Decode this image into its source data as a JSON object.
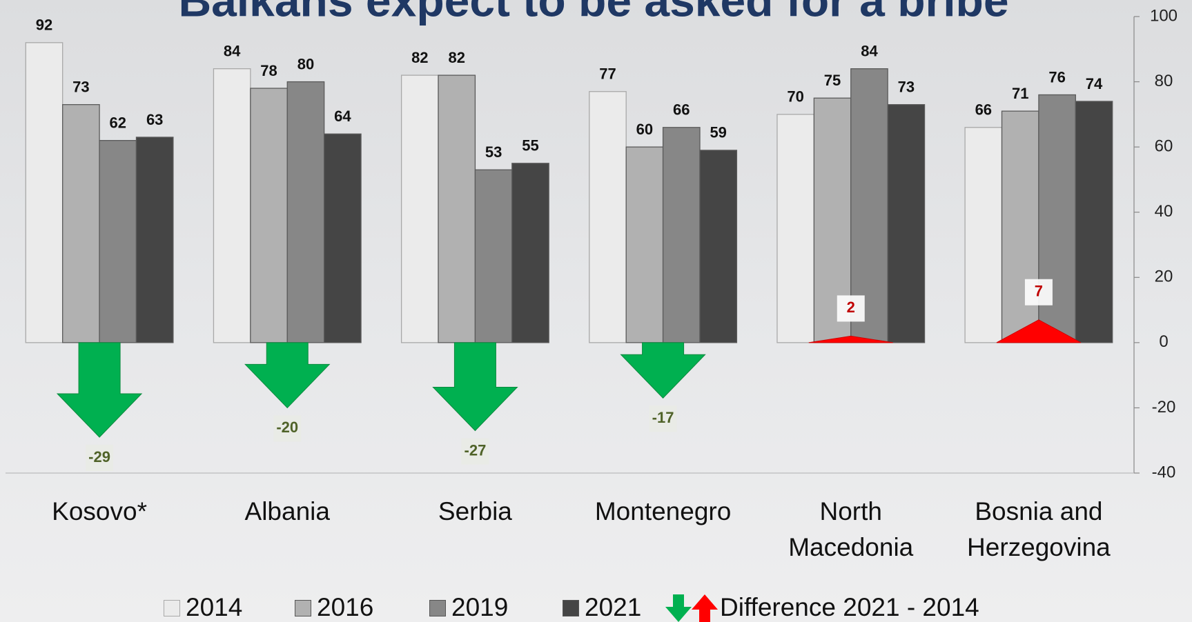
{
  "chart_data": {
    "type": "bar",
    "title": "Balkans expect to be asked for a bribe",
    "categories": [
      "Kosovo*",
      "Albania",
      "Serbia",
      "Montenegro",
      "North Macedonia",
      "Bosnia and Herzegovina"
    ],
    "series": [
      {
        "name": "2014",
        "color": "#ebebeb",
        "values": [
          92,
          84,
          82,
          77,
          70,
          66
        ]
      },
      {
        "name": "2016",
        "color": "#b1b1b1",
        "values": [
          73,
          78,
          82,
          60,
          75,
          71
        ]
      },
      {
        "name": "2019",
        "color": "#878787",
        "values": [
          62,
          80,
          53,
          66,
          84,
          76
        ]
      },
      {
        "name": "2021",
        "color": "#454545",
        "values": [
          63,
          64,
          55,
          59,
          73,
          74
        ]
      }
    ],
    "difference": {
      "name": "Difference 2021 - 2014",
      "values": [
        -29,
        -20,
        -27,
        -17,
        2,
        7
      ],
      "down_color": "#00b050",
      "up_color": "#ff0000",
      "down_label_color": "#4f6228",
      "up_label_color": "#c00000"
    },
    "ylim": [
      -40,
      100
    ],
    "yticks": [
      -40,
      -20,
      0,
      20,
      40,
      60,
      80,
      100
    ]
  }
}
